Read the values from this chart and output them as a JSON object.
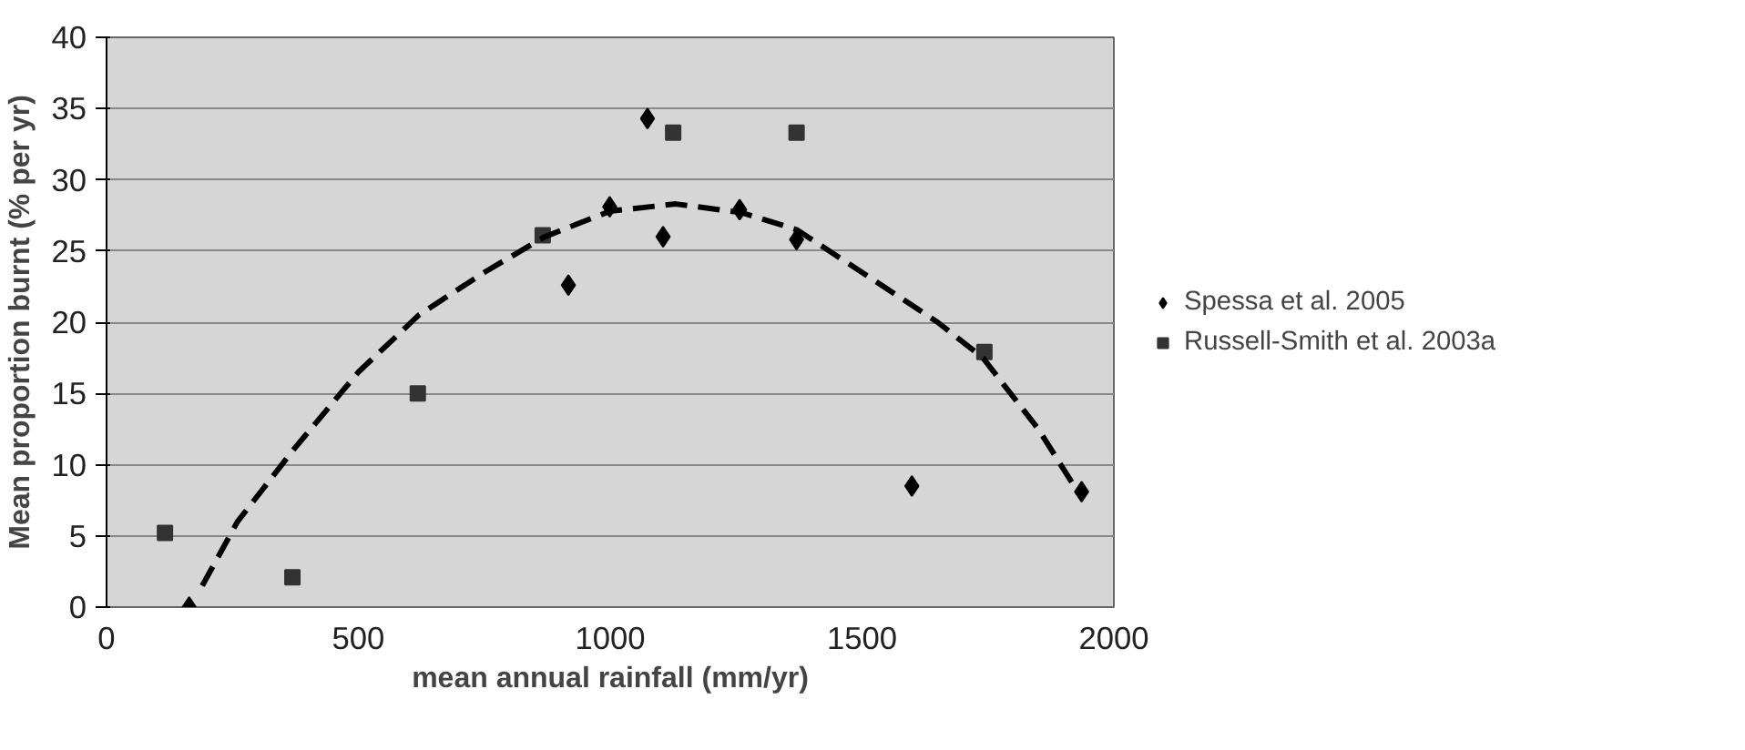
{
  "chart_data": {
    "type": "scatter",
    "xlabel": "mean annual rainfall (mm/yr)",
    "ylabel": "Mean proportion burnt (% per yr)",
    "xlim": [
      0,
      2000
    ],
    "xticks": [
      0,
      500,
      1000,
      1500,
      2000
    ],
    "ylim": [
      0,
      40
    ],
    "yticks": [
      0,
      5,
      10,
      15,
      20,
      25,
      30,
      35,
      40
    ],
    "grid": "y",
    "legend": "right",
    "series": [
      {
        "name": "Spessa et al. 2005",
        "color": "#000000",
        "marker": "diamond",
        "x": [
          164,
          917,
          999,
          1074,
          1105,
          1257,
          1370,
          1599,
          1936
        ],
        "values": [
          0,
          22.6,
          28.1,
          34.3,
          26.0,
          27.9,
          25.8,
          8.5,
          8.1
        ]
      },
      {
        "name": "Russell-Smith et al. 2003a",
        "color": "#333333",
        "marker": "square",
        "x": [
          116,
          369,
          618,
          866,
          1125,
          1370,
          1743
        ],
        "values": [
          5.2,
          2.1,
          15.0,
          26.1,
          33.3,
          33.3,
          17.9
        ]
      },
      {
        "type": "line",
        "color": "#000000",
        "line_style": "dashed",
        "x": [
          190,
          260,
          370,
          500,
          620,
          750,
          870,
          1000,
          1130,
          1260,
          1370,
          1500,
          1650,
          1740,
          1850,
          1930
        ],
        "values": [
          1.5,
          6,
          11,
          16.5,
          20.5,
          23.5,
          26,
          27.8,
          28.3,
          27.7,
          26.5,
          23.5,
          20,
          17.5,
          12.5,
          8
        ]
      }
    ]
  }
}
